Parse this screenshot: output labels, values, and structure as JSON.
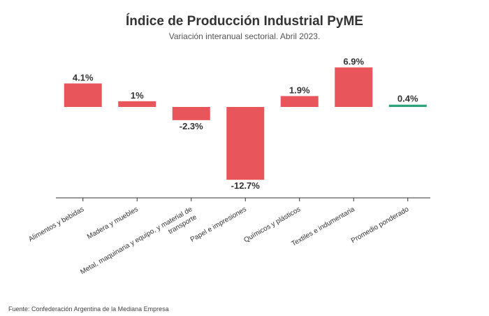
{
  "chart_data": {
    "type": "bar",
    "title": "Índice de Producción Industrial PyME",
    "subtitle": "Variación interanual sectorial. Abril 2023.",
    "categories": [
      [
        "Alimentos y bebidas"
      ],
      [
        "Madera y muebles"
      ],
      [
        "Metal, maquinaria y equipo, y material de",
        "transporte"
      ],
      [
        "Papel e impresiones"
      ],
      [
        "Químicos y plásticos"
      ],
      [
        "Textiles e indumentaria"
      ],
      [
        "Promedio ponderado"
      ]
    ],
    "values": [
      4.1,
      1,
      -2.3,
      -12.7,
      1.9,
      6.9,
      0.4
    ],
    "value_labels": [
      "4.1%",
      "1%",
      "-2.3%",
      "-12.7%",
      "1.9%",
      "6.9%",
      "0.4%"
    ],
    "colors": [
      "#e8555a",
      "#e8555a",
      "#e8555a",
      "#e8555a",
      "#e8555a",
      "#e8555a",
      "#2ea37a"
    ],
    "xlabel": "",
    "ylabel": "",
    "ylim": [
      -12.7,
      6.9
    ],
    "grid": false,
    "legend": "none"
  },
  "source": "Fuente: Confederación Argentina de la Mediana Empresa"
}
